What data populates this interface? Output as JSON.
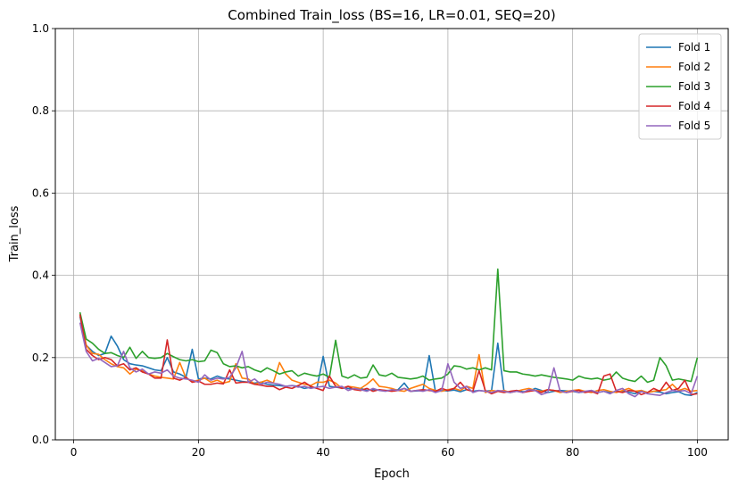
{
  "chart_data": {
    "type": "line",
    "title": "Combined Train_loss (BS=16, LR=0.01, SEQ=20)",
    "xlabel": "Epoch",
    "ylabel": "Train_loss",
    "xlim": [
      -2.95,
      104.95
    ],
    "ylim": [
      0.0,
      1.0
    ],
    "xticks": [
      0,
      20,
      40,
      60,
      80,
      100
    ],
    "yticks": [
      0.0,
      0.2,
      0.4,
      0.6,
      0.8,
      1.0
    ],
    "xtick_labels": [
      "0",
      "20",
      "40",
      "60",
      "80",
      "100"
    ],
    "ytick_labels": [
      "0.0",
      "0.2",
      "0.4",
      "0.6",
      "0.8",
      "1.0"
    ],
    "grid": true,
    "legend_position": "top-right",
    "series": [
      {
        "name": "Fold 1",
        "color": "#1f77b4",
        "x": [
          1,
          2,
          3,
          4,
          5,
          6,
          7,
          8,
          9,
          10,
          11,
          12,
          13,
          14,
          15,
          16,
          17,
          18,
          19,
          20,
          21,
          22,
          23,
          24,
          25,
          26,
          27,
          28,
          29,
          30,
          31,
          32,
          33,
          34,
          35,
          36,
          37,
          38,
          39,
          40,
          41,
          42,
          43,
          44,
          45,
          46,
          47,
          48,
          49,
          50,
          51,
          52,
          53,
          54,
          55,
          56,
          57,
          58,
          59,
          60,
          61,
          62,
          63,
          64,
          65,
          66,
          67,
          68,
          69,
          70,
          71,
          72,
          73,
          74,
          75,
          76,
          77,
          78,
          79,
          80,
          81,
          82,
          83,
          84,
          85,
          86,
          87,
          88,
          89,
          90,
          91,
          92,
          93,
          94,
          95,
          96,
          97,
          98,
          99,
          100
        ],
        "values": [
          0.3,
          0.23,
          0.215,
          0.205,
          0.21,
          0.252,
          0.228,
          0.195,
          0.185,
          0.182,
          0.18,
          0.175,
          0.17,
          0.168,
          0.2,
          0.165,
          0.16,
          0.152,
          0.22,
          0.148,
          0.15,
          0.148,
          0.155,
          0.15,
          0.148,
          0.145,
          0.142,
          0.14,
          0.138,
          0.14,
          0.135,
          0.133,
          0.132,
          0.13,
          0.132,
          0.13,
          0.125,
          0.128,
          0.126,
          0.203,
          0.13,
          0.128,
          0.126,
          0.125,
          0.123,
          0.125,
          0.12,
          0.122,
          0.121,
          0.12,
          0.12,
          0.122,
          0.138,
          0.118,
          0.119,
          0.12,
          0.205,
          0.118,
          0.12,
          0.119,
          0.121,
          0.117,
          0.122,
          0.118,
          0.12,
          0.118,
          0.12,
          0.235,
          0.118,
          0.115,
          0.12,
          0.117,
          0.118,
          0.125,
          0.12,
          0.115,
          0.118,
          0.12,
          0.119,
          0.118,
          0.115,
          0.117,
          0.12,
          0.115,
          0.118,
          0.115,
          0.117,
          0.118,
          0.116,
          0.112,
          0.12,
          0.115,
          0.118,
          0.116,
          0.112,
          0.115,
          0.117,
          0.11,
          0.108,
          0.115
        ]
      },
      {
        "name": "Fold 2",
        "color": "#ff7f0e",
        "x": [
          1,
          2,
          3,
          4,
          5,
          6,
          7,
          8,
          9,
          10,
          11,
          12,
          13,
          14,
          15,
          16,
          17,
          18,
          19,
          20,
          21,
          22,
          23,
          24,
          25,
          26,
          27,
          28,
          29,
          30,
          31,
          32,
          33,
          34,
          35,
          36,
          37,
          38,
          39,
          40,
          41,
          42,
          43,
          44,
          45,
          46,
          47,
          48,
          49,
          50,
          51,
          52,
          53,
          54,
          55,
          56,
          57,
          58,
          59,
          60,
          61,
          62,
          63,
          64,
          65,
          66,
          67,
          68,
          69,
          70,
          71,
          72,
          73,
          74,
          75,
          76,
          77,
          78,
          79,
          80,
          81,
          82,
          83,
          84,
          85,
          86,
          87,
          88,
          89,
          90,
          91,
          92,
          93,
          94,
          95,
          96,
          97,
          98,
          99,
          100
        ],
        "values": [
          0.305,
          0.23,
          0.21,
          0.208,
          0.195,
          0.185,
          0.178,
          0.175,
          0.16,
          0.172,
          0.168,
          0.16,
          0.155,
          0.152,
          0.15,
          0.148,
          0.188,
          0.15,
          0.142,
          0.145,
          0.15,
          0.14,
          0.145,
          0.138,
          0.142,
          0.185,
          0.15,
          0.148,
          0.135,
          0.14,
          0.145,
          0.138,
          0.188,
          0.16,
          0.145,
          0.14,
          0.135,
          0.132,
          0.14,
          0.14,
          0.145,
          0.138,
          0.125,
          0.13,
          0.128,
          0.125,
          0.135,
          0.148,
          0.13,
          0.128,
          0.125,
          0.12,
          0.118,
          0.125,
          0.13,
          0.135,
          0.125,
          0.12,
          0.118,
          0.122,
          0.125,
          0.12,
          0.13,
          0.125,
          0.207,
          0.115,
          0.12,
          0.118,
          0.12,
          0.115,
          0.118,
          0.122,
          0.125,
          0.12,
          0.118,
          0.122,
          0.12,
          0.115,
          0.118,
          0.12,
          0.122,
          0.118,
          0.115,
          0.12,
          0.122,
          0.118,
          0.115,
          0.12,
          0.125,
          0.118,
          0.12,
          0.115,
          0.118,
          0.12,
          0.122,
          0.135,
          0.12,
          0.125,
          0.118,
          0.12
        ]
      },
      {
        "name": "Fold 3",
        "color": "#2ca02c",
        "x": [
          1,
          2,
          3,
          4,
          5,
          6,
          7,
          8,
          9,
          10,
          11,
          12,
          13,
          14,
          15,
          16,
          17,
          18,
          19,
          20,
          21,
          22,
          23,
          24,
          25,
          26,
          27,
          28,
          29,
          30,
          31,
          32,
          33,
          34,
          35,
          36,
          37,
          38,
          39,
          40,
          41,
          42,
          43,
          44,
          45,
          46,
          47,
          48,
          49,
          50,
          51,
          52,
          53,
          54,
          55,
          56,
          57,
          58,
          59,
          60,
          61,
          62,
          63,
          64,
          65,
          66,
          67,
          68,
          69,
          70,
          71,
          72,
          73,
          74,
          75,
          76,
          77,
          78,
          79,
          80,
          81,
          82,
          83,
          84,
          85,
          86,
          87,
          88,
          89,
          90,
          91,
          92,
          93,
          94,
          95,
          96,
          97,
          98,
          99,
          100
        ],
        "values": [
          0.31,
          0.245,
          0.235,
          0.22,
          0.21,
          0.212,
          0.205,
          0.2,
          0.225,
          0.198,
          0.215,
          0.2,
          0.198,
          0.2,
          0.21,
          0.202,
          0.195,
          0.192,
          0.195,
          0.19,
          0.192,
          0.218,
          0.212,
          0.185,
          0.178,
          0.18,
          0.175,
          0.178,
          0.17,
          0.165,
          0.175,
          0.168,
          0.16,
          0.165,
          0.168,
          0.155,
          0.162,
          0.158,
          0.155,
          0.16,
          0.152,
          0.242,
          0.155,
          0.15,
          0.158,
          0.15,
          0.152,
          0.182,
          0.158,
          0.155,
          0.162,
          0.152,
          0.15,
          0.148,
          0.15,
          0.155,
          0.145,
          0.148,
          0.15,
          0.16,
          0.18,
          0.178,
          0.172,
          0.175,
          0.17,
          0.175,
          0.17,
          0.415,
          0.168,
          0.165,
          0.165,
          0.16,
          0.158,
          0.155,
          0.158,
          0.155,
          0.152,
          0.15,
          0.148,
          0.145,
          0.155,
          0.15,
          0.148,
          0.15,
          0.145,
          0.148,
          0.165,
          0.15,
          0.145,
          0.142,
          0.155,
          0.14,
          0.145,
          0.2,
          0.18,
          0.145,
          0.148,
          0.145,
          0.142,
          0.2
        ]
      },
      {
        "name": "Fold 4",
        "color": "#d62728",
        "x": [
          1,
          2,
          3,
          4,
          5,
          6,
          7,
          8,
          9,
          10,
          11,
          12,
          13,
          14,
          15,
          16,
          17,
          18,
          19,
          20,
          21,
          22,
          23,
          24,
          25,
          26,
          27,
          28,
          29,
          30,
          31,
          32,
          33,
          34,
          35,
          36,
          37,
          38,
          39,
          40,
          41,
          42,
          43,
          44,
          45,
          46,
          47,
          48,
          49,
          50,
          51,
          52,
          53,
          54,
          55,
          56,
          57,
          58,
          59,
          60,
          61,
          62,
          63,
          64,
          65,
          66,
          67,
          68,
          69,
          70,
          71,
          72,
          73,
          74,
          75,
          76,
          77,
          78,
          79,
          80,
          81,
          82,
          83,
          84,
          85,
          86,
          87,
          88,
          89,
          90,
          91,
          92,
          93,
          94,
          95,
          96,
          97,
          98,
          99,
          100
        ],
        "values": [
          0.305,
          0.22,
          0.205,
          0.195,
          0.2,
          0.195,
          0.18,
          0.185,
          0.17,
          0.175,
          0.165,
          0.16,
          0.15,
          0.15,
          0.243,
          0.15,
          0.145,
          0.152,
          0.14,
          0.143,
          0.135,
          0.135,
          0.138,
          0.136,
          0.17,
          0.138,
          0.14,
          0.14,
          0.135,
          0.133,
          0.13,
          0.13,
          0.122,
          0.128,
          0.125,
          0.132,
          0.14,
          0.13,
          0.125,
          0.12,
          0.155,
          0.13,
          0.125,
          0.13,
          0.122,
          0.12,
          0.125,
          0.118,
          0.122,
          0.12,
          0.118,
          0.12,
          0.125,
          0.118,
          0.12,
          0.122,
          0.12,
          0.118,
          0.125,
          0.12,
          0.125,
          0.14,
          0.122,
          0.118,
          0.168,
          0.12,
          0.112,
          0.118,
          0.115,
          0.118,
          0.12,
          0.115,
          0.118,
          0.12,
          0.115,
          0.122,
          0.12,
          0.118,
          0.115,
          0.118,
          0.12,
          0.115,
          0.118,
          0.112,
          0.155,
          0.16,
          0.118,
          0.115,
          0.12,
          0.118,
          0.11,
          0.115,
          0.125,
          0.118,
          0.14,
          0.12,
          0.125,
          0.145,
          0.11,
          0.112
        ]
      },
      {
        "name": "Fold 5",
        "color": "#9467bd",
        "x": [
          1,
          2,
          3,
          4,
          5,
          6,
          7,
          8,
          9,
          10,
          11,
          12,
          13,
          14,
          15,
          16,
          17,
          18,
          19,
          20,
          21,
          22,
          23,
          24,
          25,
          26,
          27,
          28,
          29,
          30,
          31,
          32,
          33,
          34,
          35,
          36,
          37,
          38,
          39,
          40,
          41,
          42,
          43,
          44,
          45,
          46,
          47,
          48,
          49,
          50,
          51,
          52,
          53,
          54,
          55,
          56,
          57,
          58,
          59,
          60,
          61,
          62,
          63,
          64,
          65,
          66,
          67,
          68,
          69,
          70,
          71,
          72,
          73,
          74,
          75,
          76,
          77,
          78,
          79,
          80,
          81,
          82,
          83,
          84,
          85,
          86,
          87,
          88,
          89,
          90,
          91,
          92,
          93,
          94,
          95,
          96,
          97,
          98,
          99,
          100
        ],
        "values": [
          0.285,
          0.215,
          0.192,
          0.198,
          0.188,
          0.178,
          0.18,
          0.215,
          0.175,
          0.165,
          0.172,
          0.16,
          0.165,
          0.162,
          0.17,
          0.155,
          0.15,
          0.148,
          0.145,
          0.14,
          0.158,
          0.145,
          0.15,
          0.148,
          0.152,
          0.175,
          0.215,
          0.14,
          0.148,
          0.135,
          0.14,
          0.138,
          0.135,
          0.13,
          0.132,
          0.128,
          0.13,
          0.125,
          0.128,
          0.13,
          0.125,
          0.128,
          0.13,
          0.12,
          0.125,
          0.122,
          0.118,
          0.125,
          0.12,
          0.118,
          0.122,
          0.12,
          0.125,
          0.118,
          0.12,
          0.118,
          0.122,
          0.115,
          0.12,
          0.185,
          0.14,
          0.125,
          0.13,
          0.115,
          0.12,
          0.118,
          0.115,
          0.12,
          0.118,
          0.115,
          0.118,
          0.115,
          0.122,
          0.12,
          0.11,
          0.115,
          0.175,
          0.118,
          0.115,
          0.12,
          0.115,
          0.118,
          0.12,
          0.115,
          0.118,
          0.112,
          0.12,
          0.125,
          0.112,
          0.105,
          0.118,
          0.112,
          0.11,
          0.108,
          0.115,
          0.12,
          0.118,
          0.12,
          0.112,
          0.155
        ]
      }
    ]
  }
}
